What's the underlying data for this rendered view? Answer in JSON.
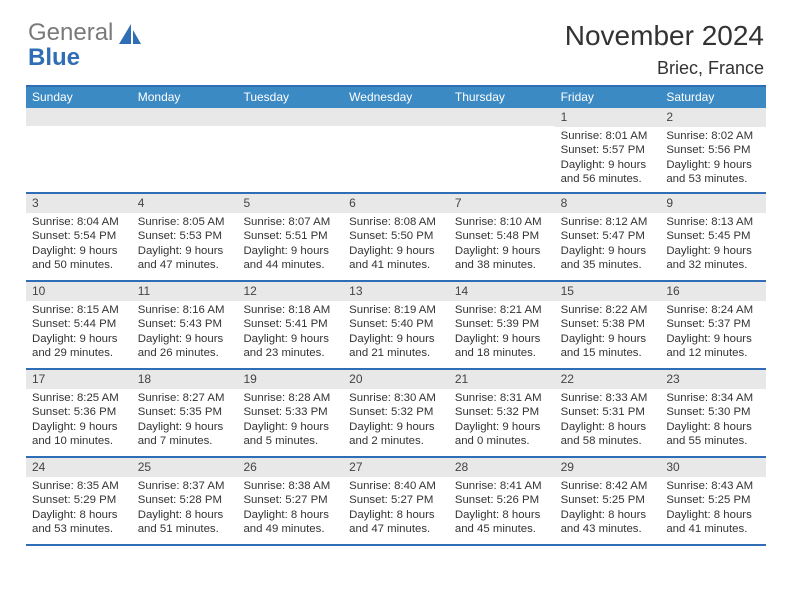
{
  "logo": {
    "word1": "General",
    "word2": "Blue"
  },
  "title": "November 2024",
  "location": "Briec, France",
  "colors": {
    "header_bg": "#3b8ac4",
    "border": "#2f6eb5",
    "daynum_bg": "#e8e8e8",
    "text": "#333333",
    "logo_gray": "#7a7a7a",
    "logo_blue": "#2f6eb5",
    "background": "#ffffff",
    "header_text": "#ffffff"
  },
  "fonts": {
    "title_pt": 28,
    "location_pt": 18,
    "dayhdr_pt": 12,
    "cell_pt": 11.5
  },
  "day_headers": [
    "Sunday",
    "Monday",
    "Tuesday",
    "Wednesday",
    "Thursday",
    "Friday",
    "Saturday"
  ],
  "labels": {
    "sunrise": "Sunrise",
    "sunset": "Sunset",
    "daylight": "Daylight"
  },
  "weeks": [
    [
      null,
      null,
      null,
      null,
      null,
      {
        "d": "1",
        "sunrise": "8:01 AM",
        "sunset": "5:57 PM",
        "dayh": "9",
        "daym": "56"
      },
      {
        "d": "2",
        "sunrise": "8:02 AM",
        "sunset": "5:56 PM",
        "dayh": "9",
        "daym": "53"
      }
    ],
    [
      {
        "d": "3",
        "sunrise": "8:04 AM",
        "sunset": "5:54 PM",
        "dayh": "9",
        "daym": "50"
      },
      {
        "d": "4",
        "sunrise": "8:05 AM",
        "sunset": "5:53 PM",
        "dayh": "9",
        "daym": "47"
      },
      {
        "d": "5",
        "sunrise": "8:07 AM",
        "sunset": "5:51 PM",
        "dayh": "9",
        "daym": "44"
      },
      {
        "d": "6",
        "sunrise": "8:08 AM",
        "sunset": "5:50 PM",
        "dayh": "9",
        "daym": "41"
      },
      {
        "d": "7",
        "sunrise": "8:10 AM",
        "sunset": "5:48 PM",
        "dayh": "9",
        "daym": "38"
      },
      {
        "d": "8",
        "sunrise": "8:12 AM",
        "sunset": "5:47 PM",
        "dayh": "9",
        "daym": "35"
      },
      {
        "d": "9",
        "sunrise": "8:13 AM",
        "sunset": "5:45 PM",
        "dayh": "9",
        "daym": "32"
      }
    ],
    [
      {
        "d": "10",
        "sunrise": "8:15 AM",
        "sunset": "5:44 PM",
        "dayh": "9",
        "daym": "29"
      },
      {
        "d": "11",
        "sunrise": "8:16 AM",
        "sunset": "5:43 PM",
        "dayh": "9",
        "daym": "26"
      },
      {
        "d": "12",
        "sunrise": "8:18 AM",
        "sunset": "5:41 PM",
        "dayh": "9",
        "daym": "23"
      },
      {
        "d": "13",
        "sunrise": "8:19 AM",
        "sunset": "5:40 PM",
        "dayh": "9",
        "daym": "21"
      },
      {
        "d": "14",
        "sunrise": "8:21 AM",
        "sunset": "5:39 PM",
        "dayh": "9",
        "daym": "18"
      },
      {
        "d": "15",
        "sunrise": "8:22 AM",
        "sunset": "5:38 PM",
        "dayh": "9",
        "daym": "15"
      },
      {
        "d": "16",
        "sunrise": "8:24 AM",
        "sunset": "5:37 PM",
        "dayh": "9",
        "daym": "12"
      }
    ],
    [
      {
        "d": "17",
        "sunrise": "8:25 AM",
        "sunset": "5:36 PM",
        "dayh": "9",
        "daym": "10"
      },
      {
        "d": "18",
        "sunrise": "8:27 AM",
        "sunset": "5:35 PM",
        "dayh": "9",
        "daym": "7"
      },
      {
        "d": "19",
        "sunrise": "8:28 AM",
        "sunset": "5:33 PM",
        "dayh": "9",
        "daym": "5"
      },
      {
        "d": "20",
        "sunrise": "8:30 AM",
        "sunset": "5:32 PM",
        "dayh": "9",
        "daym": "2"
      },
      {
        "d": "21",
        "sunrise": "8:31 AM",
        "sunset": "5:32 PM",
        "dayh": "9",
        "daym": "0"
      },
      {
        "d": "22",
        "sunrise": "8:33 AM",
        "sunset": "5:31 PM",
        "dayh": "8",
        "daym": "58"
      },
      {
        "d": "23",
        "sunrise": "8:34 AM",
        "sunset": "5:30 PM",
        "dayh": "8",
        "daym": "55"
      }
    ],
    [
      {
        "d": "24",
        "sunrise": "8:35 AM",
        "sunset": "5:29 PM",
        "dayh": "8",
        "daym": "53"
      },
      {
        "d": "25",
        "sunrise": "8:37 AM",
        "sunset": "5:28 PM",
        "dayh": "8",
        "daym": "51"
      },
      {
        "d": "26",
        "sunrise": "8:38 AM",
        "sunset": "5:27 PM",
        "dayh": "8",
        "daym": "49"
      },
      {
        "d": "27",
        "sunrise": "8:40 AM",
        "sunset": "5:27 PM",
        "dayh": "8",
        "daym": "47"
      },
      {
        "d": "28",
        "sunrise": "8:41 AM",
        "sunset": "5:26 PM",
        "dayh": "8",
        "daym": "45"
      },
      {
        "d": "29",
        "sunrise": "8:42 AM",
        "sunset": "5:25 PM",
        "dayh": "8",
        "daym": "43"
      },
      {
        "d": "30",
        "sunrise": "8:43 AM",
        "sunset": "5:25 PM",
        "dayh": "8",
        "daym": "41"
      }
    ]
  ]
}
